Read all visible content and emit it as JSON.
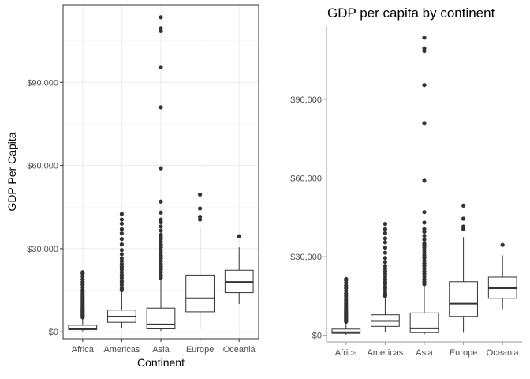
{
  "chart_data": [
    {
      "type": "boxplot",
      "title": "",
      "xlabel": "Continent",
      "ylabel": "GDP Per Capita",
      "theme": "bordered panel with light grid",
      "ylim": [
        -2500,
        118000
      ],
      "y_ticks": [
        0,
        30000,
        60000,
        90000
      ],
      "y_tick_labels": [
        "$0",
        "$30,000",
        "$60,000",
        "$90,000"
      ],
      "categories": [
        "Africa",
        "Americas",
        "Asia",
        "Europe",
        "Oceania"
      ],
      "boxes": [
        {
          "min": 241,
          "q1": 762,
          "median": 1192,
          "q3": 2377,
          "max": 5000,
          "outliers": [
            5200,
            5600,
            6000,
            6400,
            6800,
            7200,
            7600,
            8000,
            8400,
            8800,
            9300,
            9800,
            10300,
            11000,
            11600,
            12200,
            12800,
            13500,
            14200,
            15000,
            16000,
            17000,
            18000,
            19000,
            20000,
            21000,
            21500
          ]
        },
        {
          "min": 1202,
          "q1": 3428,
          "median": 5466,
          "q3": 7830,
          "max": 14500,
          "outliers": [
            15000,
            15500,
            16000,
            17000,
            18000,
            18500,
            19500,
            20500,
            21500,
            22500,
            23500,
            24500,
            25500,
            26500,
            28000,
            29500,
            31500,
            33500,
            35500,
            37000,
            39000,
            40500,
            42500
          ]
        },
        {
          "min": 331,
          "q1": 1057,
          "median": 2647,
          "q3": 8549,
          "max": 19000,
          "outliers": [
            19500,
            20500,
            21500,
            22500,
            23500,
            24500,
            25500,
            26500,
            27500,
            28500,
            29500,
            30500,
            31500,
            32500,
            33500,
            34500,
            35000,
            36500,
            38000,
            39500,
            40500,
            43000,
            47000,
            59000,
            81000,
            95500,
            108500,
            109500,
            113500
          ]
        },
        {
          "min": 974,
          "q1": 7213,
          "median": 12082,
          "q3": 20461,
          "max": 37500,
          "outliers": [
            40500,
            41500,
            44500,
            49500
          ]
        },
        {
          "min": 10040,
          "q1": 14141,
          "median": 17983,
          "q3": 22214,
          "max": 30500,
          "outliers": [
            34500
          ]
        }
      ]
    },
    {
      "type": "boxplot",
      "title": "GDP per capita by continent",
      "xlabel": "",
      "ylabel": "",
      "theme": "classic axes, no grid",
      "ylim": [
        -2500,
        118000
      ],
      "y_ticks": [
        0,
        30000,
        60000,
        90000
      ],
      "y_tick_labels": [
        "$0",
        "$30,000",
        "$60,000",
        "$90,000"
      ],
      "categories": [
        "Africa",
        "Americas",
        "Asia",
        "Europe",
        "Oceania"
      ],
      "boxes": [
        {
          "min": 241,
          "q1": 762,
          "median": 1192,
          "q3": 2377,
          "max": 5000,
          "outliers": [
            5200,
            5600,
            6000,
            6400,
            6800,
            7200,
            7600,
            8000,
            8400,
            8800,
            9300,
            9800,
            10300,
            11000,
            11600,
            12200,
            12800,
            13500,
            14200,
            15000,
            16000,
            17000,
            18000,
            19000,
            20000,
            21000,
            21500
          ]
        },
        {
          "min": 1202,
          "q1": 3428,
          "median": 5466,
          "q3": 7830,
          "max": 14500,
          "outliers": [
            15000,
            15500,
            16000,
            17000,
            18000,
            18500,
            19500,
            20500,
            21500,
            22500,
            23500,
            24500,
            25500,
            26500,
            28000,
            29500,
            31500,
            33500,
            35500,
            37000,
            39000,
            40500,
            42500
          ]
        },
        {
          "min": 331,
          "q1": 1057,
          "median": 2647,
          "q3": 8549,
          "max": 19000,
          "outliers": [
            19500,
            20500,
            21500,
            22500,
            23500,
            24500,
            25500,
            26500,
            27500,
            28500,
            29500,
            30500,
            31500,
            32500,
            33500,
            34500,
            35000,
            36500,
            38000,
            39500,
            40500,
            43000,
            47000,
            59000,
            81000,
            95500,
            108500,
            109500,
            113500
          ]
        },
        {
          "min": 974,
          "q1": 7213,
          "median": 12082,
          "q3": 20461,
          "max": 37500,
          "outliers": [
            40500,
            41500,
            44500,
            49500
          ]
        },
        {
          "min": 10040,
          "q1": 14141,
          "median": 17983,
          "q3": 22214,
          "max": 30500,
          "outliers": [
            34500
          ]
        }
      ]
    }
  ]
}
